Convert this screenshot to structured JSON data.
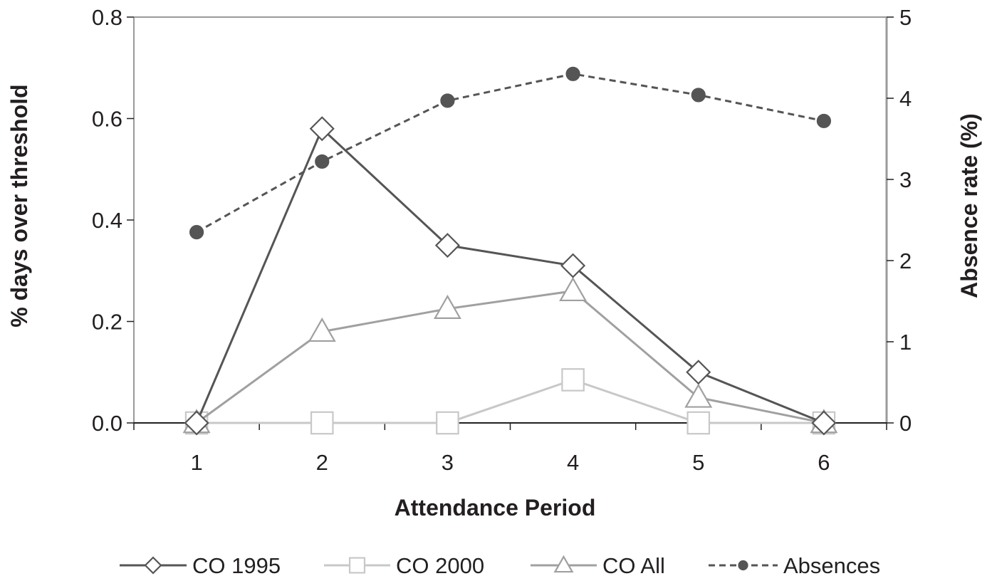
{
  "chart_data": {
    "type": "line",
    "title": "",
    "xlabel": "Attendance Period",
    "ylabel": "% days over threshold",
    "y2label": "Absence rate (%)",
    "categories": [
      "1",
      "2",
      "3",
      "4",
      "5",
      "6"
    ],
    "ylim": [
      0,
      0.8
    ],
    "y2lim": [
      0,
      5
    ],
    "y_ticks": [
      "0.0",
      "0.2",
      "0.4",
      "0.6",
      "0.8"
    ],
    "y2_ticks": [
      "0",
      "1",
      "2",
      "3",
      "4",
      "5"
    ],
    "grid": false,
    "legend_position": "bottom",
    "series": [
      {
        "name": "CO 1995",
        "axis": "left",
        "marker": "diamond",
        "line_style": "solid",
        "color": "#555555",
        "values": [
          0.0,
          0.58,
          0.35,
          0.31,
          0.1,
          0.0
        ]
      },
      {
        "name": "CO 2000",
        "axis": "left",
        "marker": "square",
        "line_style": "solid",
        "color": "#c8c8c8",
        "values": [
          0.0,
          0.0,
          0.0,
          0.085,
          0.0,
          0.0
        ]
      },
      {
        "name": "CO All",
        "axis": "left",
        "marker": "triangle",
        "line_style": "solid",
        "color": "#a0a0a0",
        "values": [
          0.0,
          0.18,
          0.225,
          0.26,
          0.05,
          0.0
        ]
      },
      {
        "name": "Absences",
        "axis": "right",
        "marker": "circle",
        "line_style": "dashed",
        "color": "#555555",
        "values": [
          2.35,
          3.22,
          3.97,
          4.3,
          4.04,
          3.72
        ]
      }
    ]
  }
}
